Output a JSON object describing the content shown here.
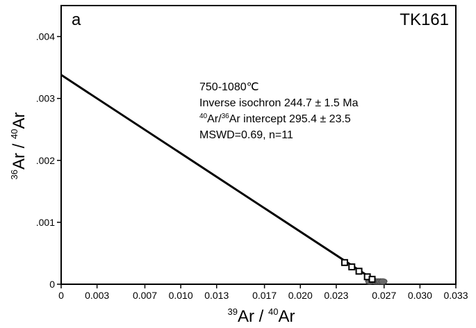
{
  "chart_data": {
    "type": "scatter",
    "panel_label": "a",
    "sample_label": "TK161",
    "xlabel": {
      "sup": "39",
      "main": "Ar",
      "sep": " / ",
      "sup2": "40",
      "main2": "Ar"
    },
    "ylabel": {
      "sup": "36",
      "main": "Ar",
      "sep": " / ",
      "sup2": "40",
      "main2": "Ar"
    },
    "xlim": [
      0,
      0.033
    ],
    "ylim": [
      0,
      0.0045
    ],
    "x_ticks": [
      0,
      0.003,
      0.007,
      0.01,
      0.013,
      0.017,
      0.02,
      0.023,
      0.027,
      0.03,
      0.033
    ],
    "x_tick_labels": [
      "0",
      "0.003",
      "0.007",
      "0.010",
      "0.013",
      "0.017",
      "0.020",
      "0.023",
      "0.027",
      "0.030",
      "0.033"
    ],
    "y_ticks": [
      0,
      0.001,
      0.002,
      0.003,
      0.004
    ],
    "y_tick_labels": [
      "0",
      ".001",
      ".002",
      ".003",
      ".004"
    ],
    "annotation": {
      "line1": "750-1080℃",
      "line2": "Inverse isochron 244.7 ± 1.5 Ma",
      "line3_sup1": "40",
      "line3_a": "Ar/",
      "line3_sup2": "36",
      "line3_b": "Ar intercept 295.4 ± 23.5",
      "line4": "MSWD=0.69, n=11"
    },
    "isochron_line": {
      "x": [
        0,
        0.0267
      ],
      "y": [
        0.00338,
        0
      ]
    },
    "series": [
      {
        "marker": "open-square",
        "x": [
          0.0237,
          0.0243,
          0.0249,
          0.0256,
          0.026
        ],
        "y": [
          0.00035,
          0.00028,
          0.00021,
          0.00012,
          8e-05
        ]
      },
      {
        "marker": "filled-ellipse",
        "x": [
          0.0258,
          0.0261,
          0.0263,
          0.0265,
          0.0267,
          0.0269
        ],
        "y": [
          3e-05,
          5e-05,
          2e-05,
          4e-05,
          2e-05,
          3e-05
        ]
      }
    ]
  }
}
